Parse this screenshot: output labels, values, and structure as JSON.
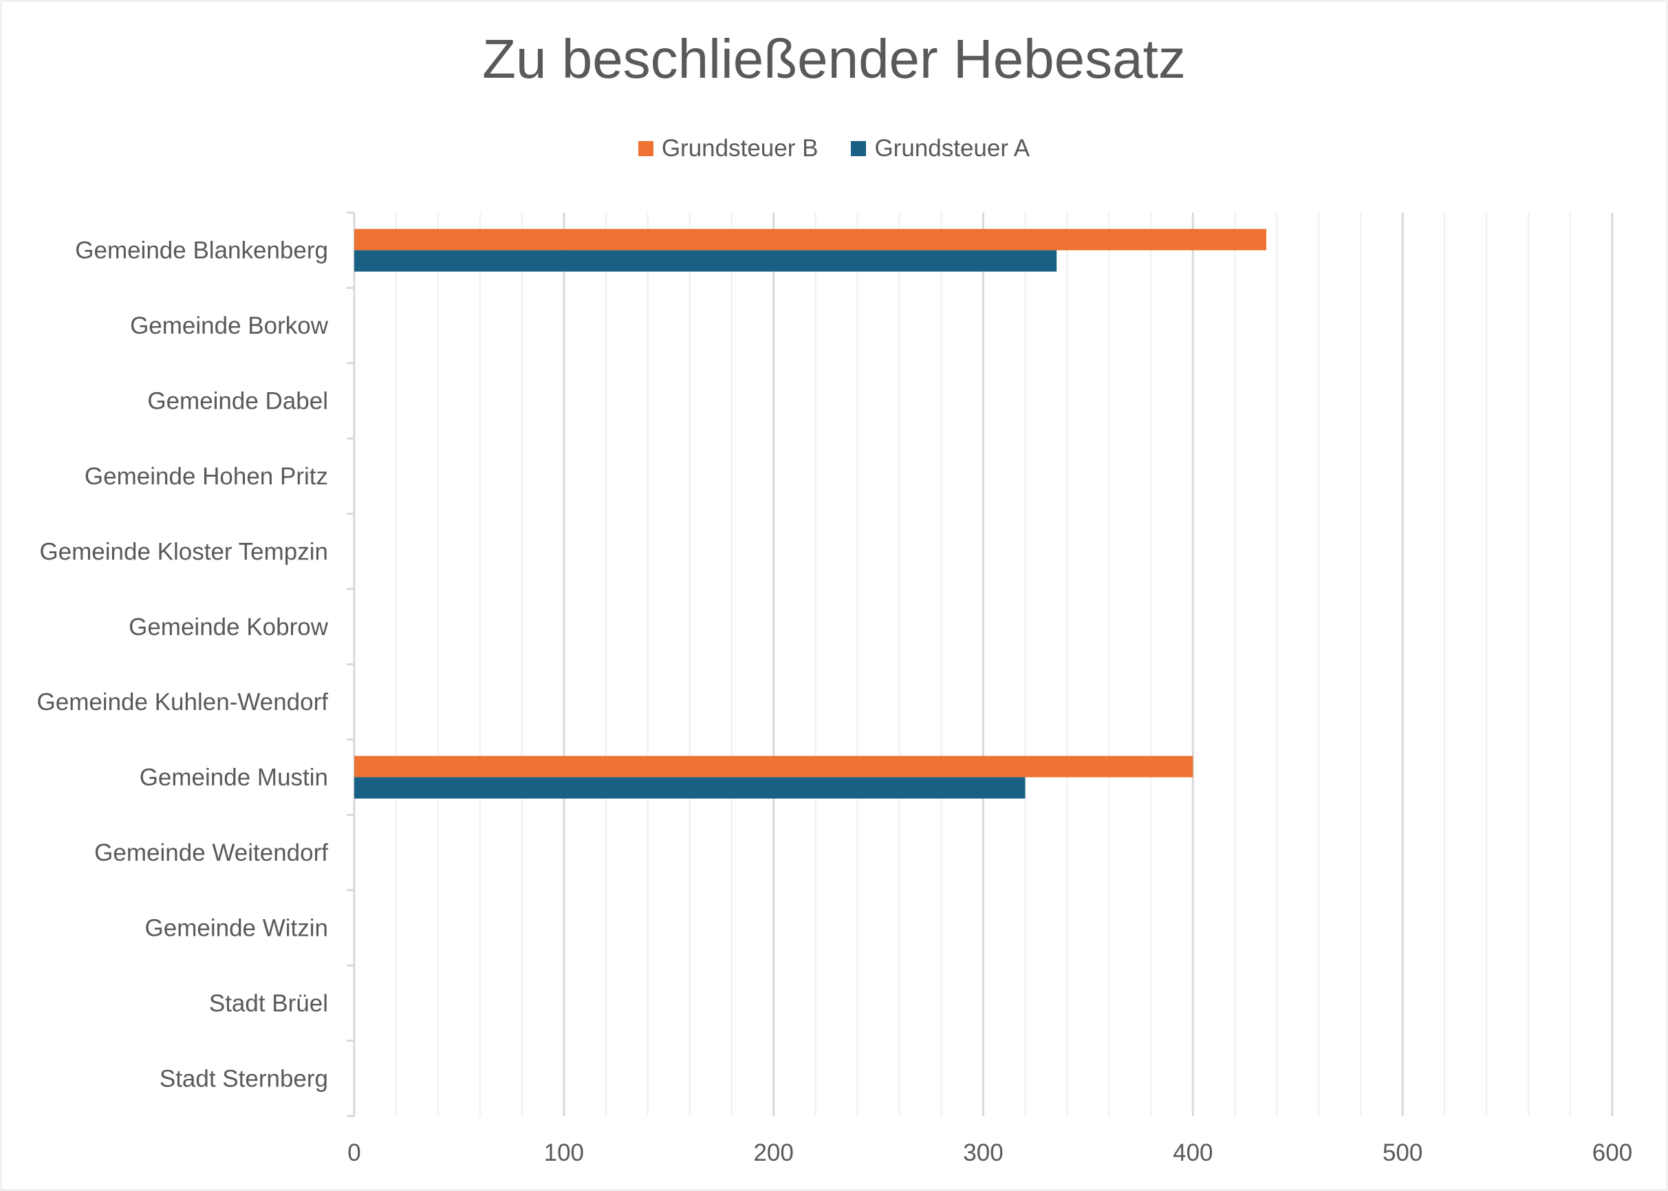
{
  "colors": {
    "grundsteuer_b": "#ED7233",
    "grundsteuer_a": "#186184",
    "text": "#595959",
    "major_grid": "#d9d9d9",
    "minor_grid": "#efefef",
    "axis": "#d9d9d9"
  },
  "chart_data": {
    "type": "bar",
    "orientation": "horizontal",
    "title": "Zu beschließender Hebesatz",
    "categories": [
      "Gemeinde Blankenberg",
      "Gemeinde Borkow",
      "Gemeinde Dabel",
      "Gemeinde Hohen Pritz",
      "Gemeinde Kloster Tempzin",
      "Gemeinde Kobrow",
      "Gemeinde Kuhlen-Wendorf",
      "Gemeinde Mustin",
      "Gemeinde Weitendorf",
      "Gemeinde Witzin",
      "Stadt Brüel",
      "Stadt Sternberg"
    ],
    "series": [
      {
        "name": "Grundsteuer B",
        "values": [
          435,
          null,
          null,
          null,
          null,
          null,
          null,
          400,
          null,
          null,
          null,
          null
        ]
      },
      {
        "name": "Grundsteuer A",
        "values": [
          335,
          null,
          null,
          null,
          null,
          null,
          null,
          320,
          null,
          null,
          null,
          null
        ]
      }
    ],
    "xlim": [
      0,
      600
    ],
    "xticks": [
      0,
      100,
      200,
      300,
      400,
      500,
      600
    ],
    "x_minor_step": 20,
    "grid": true,
    "legend_position": "top"
  }
}
